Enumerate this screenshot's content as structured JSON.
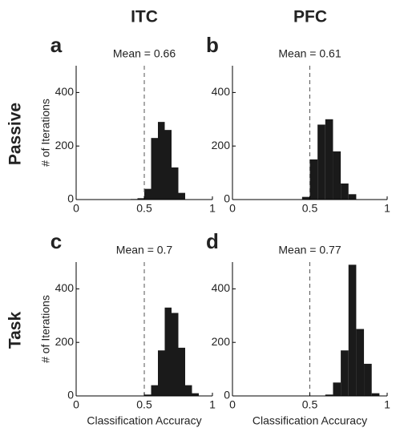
{
  "figure": {
    "columns": [
      "ITC",
      "PFC"
    ],
    "rows": [
      "Passive",
      "Task"
    ]
  },
  "chart_data": [
    {
      "type": "histogram",
      "label": "a",
      "title": "Mean = 0.66",
      "ylabel": "# of Iterations",
      "bins": [
        0.4,
        0.45,
        0.5,
        0.55,
        0.6,
        0.65,
        0.7,
        0.75,
        0.8
      ],
      "counts": [
        2,
        5,
        40,
        230,
        290,
        260,
        120,
        25
      ],
      "color": "#1a1a1a",
      "xlim": [
        0,
        1
      ],
      "xticks": [
        0,
        0.5,
        1
      ],
      "ylim": [
        0,
        500
      ],
      "yticks": [
        0,
        200,
        400
      ],
      "vline": 0.5
    },
    {
      "type": "histogram",
      "label": "b",
      "title": "Mean = 0.61",
      "bins": [
        0.45,
        0.5,
        0.55,
        0.6,
        0.65,
        0.7,
        0.75,
        0.8
      ],
      "counts": [
        10,
        150,
        280,
        300,
        180,
        60,
        20
      ],
      "color": "#1a1a1a",
      "xlim": [
        0,
        1
      ],
      "xticks": [
        0,
        0.5,
        1
      ],
      "ylim": [
        0,
        500
      ],
      "yticks": [
        0,
        200,
        400
      ],
      "vline": 0.5
    },
    {
      "type": "histogram",
      "label": "c",
      "title": "Mean = 0.7",
      "ylabel": "# of Iterations",
      "xlabel": "Classification Accuracy",
      "bins": [
        0.5,
        0.55,
        0.6,
        0.65,
        0.7,
        0.75,
        0.8,
        0.85,
        0.9
      ],
      "counts": [
        5,
        40,
        170,
        330,
        310,
        180,
        40,
        10
      ],
      "color": "#1a1a1a",
      "xlim": [
        0,
        1
      ],
      "xticks": [
        0,
        0.5,
        1
      ],
      "ylim": [
        0,
        500
      ],
      "yticks": [
        0,
        200,
        400
      ],
      "vline": 0.5
    },
    {
      "type": "histogram",
      "label": "d",
      "title": "Mean = 0.77",
      "xlabel": "Classification Accuracy",
      "bins": [
        0.6,
        0.65,
        0.7,
        0.75,
        0.8,
        0.85,
        0.9,
        0.95
      ],
      "counts": [
        5,
        50,
        170,
        490,
        250,
        120,
        10
      ],
      "color": "#1a1a1a",
      "xlim": [
        0,
        1
      ],
      "xticks": [
        0,
        0.5,
        1
      ],
      "ylim": [
        0,
        500
      ],
      "yticks": [
        0,
        200,
        400
      ],
      "vline": 0.5
    }
  ]
}
